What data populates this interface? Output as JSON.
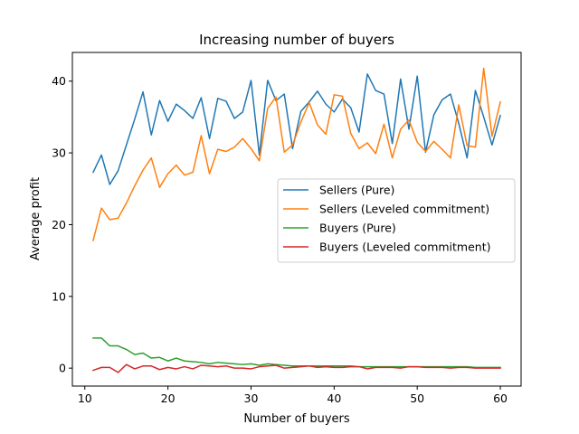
{
  "chart_data": {
    "type": "line",
    "title": "Increasing number of buyers",
    "xlabel": "Number of buyers",
    "ylabel": "Average profit",
    "xlim": [
      8.5,
      62.5
    ],
    "ylim": [
      -2.5,
      44
    ],
    "xticks": [
      10,
      20,
      30,
      40,
      50,
      60
    ],
    "yticks": [
      0,
      10,
      20,
      30,
      40
    ],
    "grid": false,
    "legend_position": "center-right",
    "x": [
      11,
      12,
      13,
      14,
      15,
      16,
      17,
      18,
      19,
      20,
      21,
      22,
      23,
      24,
      25,
      26,
      27,
      28,
      29,
      30,
      31,
      32,
      33,
      34,
      35,
      36,
      37,
      38,
      39,
      40,
      41,
      42,
      43,
      44,
      45,
      46,
      47,
      48,
      49,
      50,
      51,
      52,
      53,
      54,
      55,
      56,
      57,
      58,
      59,
      60
    ],
    "series": [
      {
        "name": "Sellers (Pure)",
        "color": "#1f77b4",
        "values": [
          27.3,
          29.7,
          25.6,
          27.5,
          31.1,
          34.7,
          38.5,
          32.5,
          37.3,
          34.4,
          36.8,
          35.9,
          34.8,
          37.7,
          32.0,
          37.6,
          37.2,
          34.8,
          35.7,
          40.1,
          29.7,
          40.1,
          37.3,
          38.2,
          30.6,
          35.8,
          37.1,
          38.6,
          36.8,
          35.7,
          37.5,
          36.3,
          32.9,
          41.0,
          38.7,
          38.2,
          31.3,
          40.3,
          33.3,
          40.7,
          30.1,
          35.3,
          37.4,
          38.2,
          34.1,
          29.3,
          38.7,
          35.0,
          31.1,
          35.2
        ]
      },
      {
        "name": "Sellers (Leveled commitment)",
        "color": "#ff7f0e",
        "values": [
          17.8,
          22.3,
          20.7,
          20.9,
          23.0,
          25.4,
          27.6,
          29.3,
          25.2,
          27.1,
          28.3,
          26.9,
          27.3,
          32.4,
          27.1,
          30.5,
          30.2,
          30.8,
          32.0,
          30.6,
          28.9,
          36.2,
          37.8,
          30.1,
          31.1,
          34.3,
          37.0,
          33.9,
          32.6,
          38.1,
          37.9,
          32.7,
          30.6,
          31.4,
          29.9,
          34.0,
          29.3,
          33.3,
          34.6,
          31.5,
          30.2,
          31.6,
          30.5,
          29.3,
          36.7,
          31.0,
          30.8,
          41.8,
          32.3,
          37.1
        ]
      },
      {
        "name": "Buyers (Pure)",
        "color": "#2ca02c",
        "values": [
          4.2,
          4.2,
          3.1,
          3.1,
          2.6,
          1.9,
          2.1,
          1.4,
          1.5,
          1.0,
          1.4,
          1.0,
          0.9,
          0.8,
          0.6,
          0.8,
          0.7,
          0.6,
          0.5,
          0.6,
          0.4,
          0.6,
          0.5,
          0.4,
          0.3,
          0.3,
          0.3,
          0.3,
          0.3,
          0.3,
          0.3,
          0.3,
          0.2,
          0.2,
          0.2,
          0.2,
          0.2,
          0.2,
          0.2,
          0.2,
          0.2,
          0.2,
          0.2,
          0.2,
          0.2,
          0.2,
          0.1,
          0.1,
          0.1,
          0.1
        ]
      },
      {
        "name": "Buyers (Leveled commitment)",
        "color": "#d62728",
        "values": [
          -0.3,
          0.1,
          0.1,
          -0.6,
          0.5,
          -0.1,
          0.3,
          0.3,
          -0.2,
          0.1,
          -0.1,
          0.2,
          -0.1,
          0.4,
          0.3,
          0.2,
          0.3,
          0.0,
          0.0,
          -0.1,
          0.2,
          0.3,
          0.4,
          0.0,
          0.1,
          0.2,
          0.3,
          0.1,
          0.2,
          0.1,
          0.1,
          0.2,
          0.2,
          -0.1,
          0.1,
          0.1,
          0.1,
          0.0,
          0.2,
          0.2,
          0.1,
          0.1,
          0.1,
          0.0,
          0.1,
          0.1,
          0.0,
          0.0,
          0.0,
          0.0
        ]
      }
    ]
  }
}
